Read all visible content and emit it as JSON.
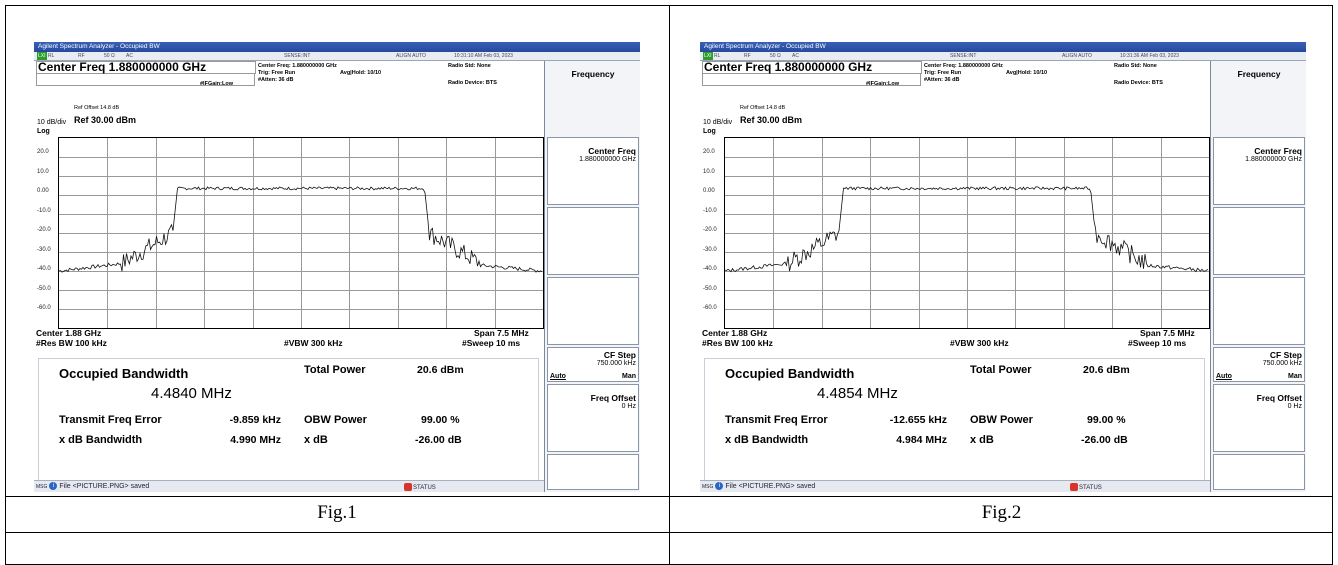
{
  "panels": [
    {
      "id": "fig1",
      "app_title": "Agilent Spectrum Analyzer - Occupied BW",
      "status_row": [
        "LXI",
        "RL",
        "RF",
        "50 Ω",
        "AC",
        "SENSE:INT",
        "ALIGN AUTO",
        "10:31:10 AM Feb 03, 2023"
      ],
      "center_freq_box": "Center Freq 1.880000000 GHz",
      "meas_center": "Center Freq: 1.880000000 GHz",
      "trig": "Trig: Free Run",
      "avg_hold": "Avg|Hold: 10/10",
      "atten": "#Atten: 36 dB",
      "if_gain": "#IFGain:Low",
      "radio_std": "Radio Std: None",
      "radio_device": "Radio Device: BTS",
      "ref_offset": "Ref Offset 14.8 dB",
      "scale": "10 dB/div",
      "ref_level": "Ref 30.00 dBm",
      "log": "Log",
      "y_ticks": [
        "20.0",
        "10.0",
        "0.00",
        "-10.0",
        "-20.0",
        "-30.0",
        "-40.0",
        "-50.0",
        "-60.0"
      ],
      "center": "Center 1.88 GHz",
      "span": "Span 7.5 MHz",
      "rbw": "#Res BW 100 kHz",
      "vbw": "#VBW 300 kHz",
      "sweep": "#Sweep 10 ms",
      "occupied_bw_label": "Occupied Bandwidth",
      "occupied_bw_value": "4.4840 MHz",
      "total_power_label": "Total Power",
      "total_power_value": "20.6 dBm",
      "tx_freq_err_label": "Transmit Freq Error",
      "tx_freq_err_value": "-9.859 kHz",
      "obw_power_label": "OBW Power",
      "obw_power_value": "99.00 %",
      "xdb_bw_label": "x dB Bandwidth",
      "xdb_bw_value": "4.990 MHz",
      "xdb_label": "x dB",
      "xdb_value": "-26.00 dB",
      "softkeys": {
        "frequency": "Frequency",
        "center_freq": "Center Freq",
        "center_freq_val": "1.880000000 GHz",
        "cf_step": "CF Step",
        "cf_step_val": "750.000 kHz",
        "auto": "Auto",
        "man": "Man",
        "freq_offset": "Freq Offset",
        "freq_offset_val": "0 Hz"
      },
      "msg_prefix": "MSG",
      "message": "File <PICTURE.PNG> saved",
      "status_label": "STATUS",
      "caption": "Fig.1"
    },
    {
      "id": "fig2",
      "app_title": "Agilent Spectrum Analyzer - Occupied BW",
      "status_row": [
        "LXI",
        "RL",
        "RF",
        "50 Ω",
        "AC",
        "SENSE:INT",
        "ALIGN AUTO",
        "10:31:36 AM Feb 03, 2023"
      ],
      "center_freq_box": "Center Freq 1.880000000 GHz",
      "meas_center": "Center Freq: 1.880000000 GHz",
      "trig": "Trig: Free Run",
      "avg_hold": "Avg|Hold: 10/10",
      "atten": "#Atten: 36 dB",
      "if_gain": "#IFGain:Low",
      "radio_std": "Radio Std: None",
      "radio_device": "Radio Device: BTS",
      "ref_offset": "Ref Offset 14.8 dB",
      "scale": "10 dB/div",
      "ref_level": "Ref 30.00 dBm",
      "log": "Log",
      "y_ticks": [
        "20.0",
        "10.0",
        "0.00",
        "-10.0",
        "-20.0",
        "-30.0",
        "-40.0",
        "-50.0",
        "-60.0"
      ],
      "center": "Center 1.88 GHz",
      "span": "Span 7.5 MHz",
      "rbw": "#Res BW 100 kHz",
      "vbw": "#VBW 300 kHz",
      "sweep": "#Sweep 10 ms",
      "occupied_bw_label": "Occupied Bandwidth",
      "occupied_bw_value": "4.4854 MHz",
      "total_power_label": "Total Power",
      "total_power_value": "20.6 dBm",
      "tx_freq_err_label": "Transmit Freq Error",
      "tx_freq_err_value": "-12.655 kHz",
      "obw_power_label": "OBW Power",
      "obw_power_value": "99.00 %",
      "xdb_bw_label": "x dB Bandwidth",
      "xdb_bw_value": "4.984 MHz",
      "xdb_label": "x dB",
      "xdb_value": "-26.00 dB",
      "softkeys": {
        "frequency": "Frequency",
        "center_freq": "Center Freq",
        "center_freq_val": "1.880000000 GHz",
        "cf_step": "CF Step",
        "cf_step_val": "750.000 kHz",
        "auto": "Auto",
        "man": "Man",
        "freq_offset": "Freq Offset",
        "freq_offset_val": "0 Hz"
      },
      "msg_prefix": "MSG",
      "message": "File <PICTURE.PNG> saved",
      "status_label": "STATUS",
      "caption": "Fig.2"
    }
  ]
}
